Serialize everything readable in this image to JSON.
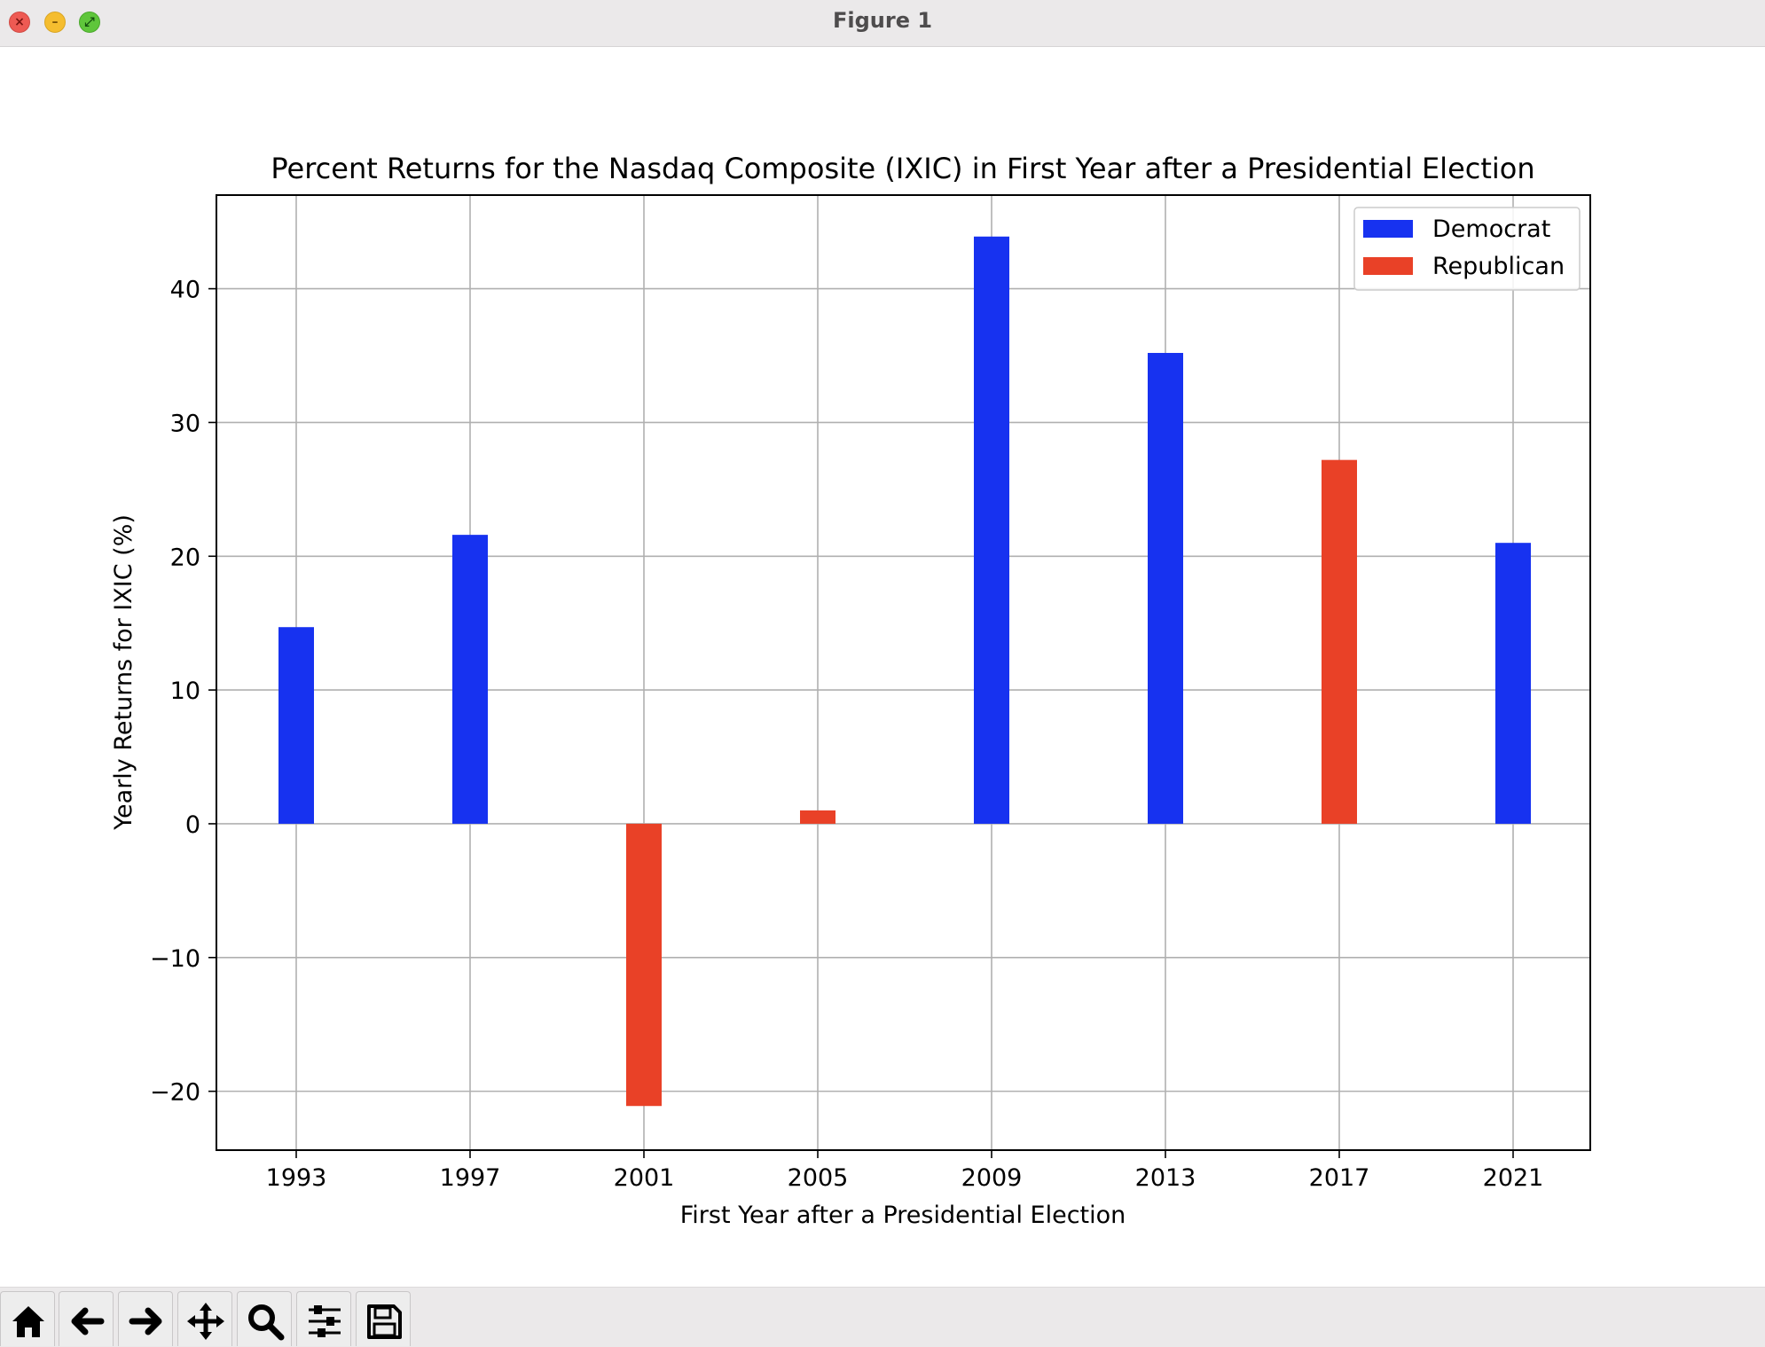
{
  "window": {
    "title": "Figure 1"
  },
  "toolbar": {
    "buttons": [
      {
        "name": "home",
        "icon": "home-icon"
      },
      {
        "name": "back",
        "icon": "arrow-left-icon"
      },
      {
        "name": "forward",
        "icon": "arrow-right-icon"
      },
      {
        "name": "pan",
        "icon": "move-icon"
      },
      {
        "name": "zoom",
        "icon": "magnifier-icon"
      },
      {
        "name": "configure-subplots",
        "icon": "sliders-icon"
      },
      {
        "name": "save",
        "icon": "floppy-disk-icon"
      }
    ]
  },
  "chart_data": {
    "type": "bar",
    "title": "Percent Returns for the Nasdaq Composite (IXIC) in First Year after a Presidential Election",
    "xlabel": "First Year after a Presidential Election",
    "ylabel": "Yearly Returns for IXIC (%)",
    "categories": [
      "1993",
      "1997",
      "2001",
      "2005",
      "2009",
      "2013",
      "2017",
      "2021"
    ],
    "values": [
      14.7,
      21.6,
      -21.1,
      1.0,
      43.9,
      35.2,
      27.2,
      21.0
    ],
    "party": [
      "Democrat",
      "Democrat",
      "Republican",
      "Republican",
      "Democrat",
      "Democrat",
      "Republican",
      "Democrat"
    ],
    "legend": [
      {
        "name": "Democrat",
        "color": "#1732f0"
      },
      {
        "name": "Republican",
        "color": "#e94127"
      }
    ],
    "legend_position": "top-right",
    "ylim": [
      -24.4,
      47
    ],
    "yticks": [
      -20,
      -10,
      0,
      10,
      20,
      30,
      40
    ],
    "ytick_labels": [
      "−20",
      "−10",
      "0",
      "10",
      "20",
      "30",
      "40"
    ],
    "grid": true
  }
}
